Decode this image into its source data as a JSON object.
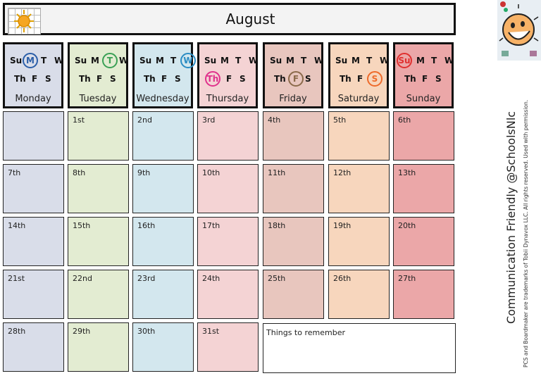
{
  "month": "August",
  "day_letters": {
    "su": "Su",
    "m": "M",
    "t": "T",
    "w": "W",
    "th": "Th",
    "f": "F",
    "s": "S"
  },
  "days": [
    {
      "name": "Monday",
      "highlight": "m",
      "color": "#d9dde9",
      "ring": "#2b5ea8"
    },
    {
      "name": "Tuesday",
      "highlight": "t",
      "color": "#e3ecd2",
      "ring": "#3aa055"
    },
    {
      "name": "Wednesday",
      "highlight": "w",
      "color": "#d3e7ee",
      "ring": "#2a8cc3"
    },
    {
      "name": "Thursday",
      "highlight": "th",
      "color": "#f4d3d4",
      "ring": "#e0318c"
    },
    {
      "name": "Friday",
      "highlight": "f",
      "color": "#e8c6be",
      "ring": "#8b6a4a"
    },
    {
      "name": "Saturday",
      "highlight": "s",
      "color": "#f7d6bd",
      "ring": "#ee6a2a"
    },
    {
      "name": "Sunday",
      "highlight": "su",
      "color": "#eba7a8",
      "ring": "#e03030"
    }
  ],
  "weeks": [
    [
      "",
      "1st",
      "2nd",
      "3rd",
      "4th",
      "5th",
      "6th"
    ],
    [
      "7th",
      "8th",
      "9th",
      "10th",
      "11th",
      "12th",
      "13th"
    ],
    [
      "14th",
      "15th",
      "16th",
      "17th",
      "18th",
      "19th",
      "20th"
    ],
    [
      "21st",
      "22nd",
      "23rd",
      "24th",
      "25th",
      "26th",
      "27th"
    ],
    [
      "28th",
      "29th",
      "30th",
      "31st"
    ]
  ],
  "remember_label": "Things to remember",
  "credit": "Communication Friendly @SchoolsNlc",
  "legal": "PCS and Boardmaker are trademarks of Tobii Dynavox LLC.  All rights reserved.  Used with permission."
}
